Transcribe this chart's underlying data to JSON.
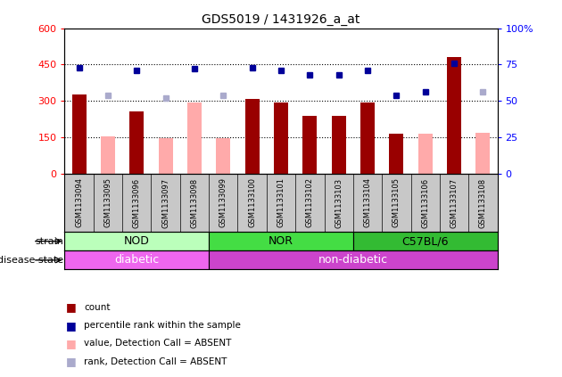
{
  "title": "GDS5019 / 1431926_a_at",
  "samples": [
    "GSM1133094",
    "GSM1133095",
    "GSM1133096",
    "GSM1133097",
    "GSM1133098",
    "GSM1133099",
    "GSM1133100",
    "GSM1133101",
    "GSM1133102",
    "GSM1133103",
    "GSM1133104",
    "GSM1133105",
    "GSM1133106",
    "GSM1133107",
    "GSM1133108"
  ],
  "count_present": [
    325,
    null,
    255,
    null,
    null,
    null,
    310,
    295,
    240,
    240,
    295,
    165,
    null,
    480,
    null
  ],
  "count_absent": [
    null,
    155,
    null,
    145,
    295,
    145,
    null,
    null,
    null,
    null,
    null,
    null,
    165,
    null,
    170
  ],
  "pct_present": [
    73,
    null,
    71,
    null,
    72,
    null,
    73,
    71,
    68,
    68,
    71,
    54,
    56,
    76,
    null
  ],
  "pct_absent": [
    null,
    54,
    null,
    52,
    null,
    54,
    null,
    null,
    null,
    null,
    null,
    null,
    null,
    null,
    56
  ],
  "ylim_left": [
    0,
    600
  ],
  "ylim_right": [
    0,
    100
  ],
  "yticks_left": [
    0,
    150,
    300,
    450,
    600
  ],
  "yticks_right": [
    0,
    25,
    50,
    75,
    100
  ],
  "hlines": [
    150,
    300,
    450
  ],
  "color_count_present": "#990000",
  "color_count_absent": "#FFAAAA",
  "color_pct_present": "#000099",
  "color_pct_absent": "#AAAACC",
  "bar_width": 0.5,
  "marker_size": 5,
  "strain_groups": [
    {
      "label": "NOD",
      "start": 0,
      "end": 4,
      "color": "#BBFFBB"
    },
    {
      "label": "NOR",
      "start": 5,
      "end": 9,
      "color": "#44DD44"
    },
    {
      "label": "C57BL/6",
      "start": 10,
      "end": 14,
      "color": "#33BB33"
    }
  ],
  "disease_groups": [
    {
      "label": "diabetic",
      "start": 0,
      "end": 4,
      "color": "#EE66EE"
    },
    {
      "label": "non-diabetic",
      "start": 5,
      "end": 14,
      "color": "#CC44CC"
    }
  ],
  "legend_items": [
    {
      "color": "#990000",
      "label": "count"
    },
    {
      "color": "#000099",
      "label": "percentile rank within the sample"
    },
    {
      "color": "#FFAAAA",
      "label": "value, Detection Call = ABSENT"
    },
    {
      "color": "#AAAACC",
      "label": "rank, Detection Call = ABSENT"
    }
  ],
  "sample_bg_color": "#C8C8C8",
  "cell_edge_color": "#888888"
}
